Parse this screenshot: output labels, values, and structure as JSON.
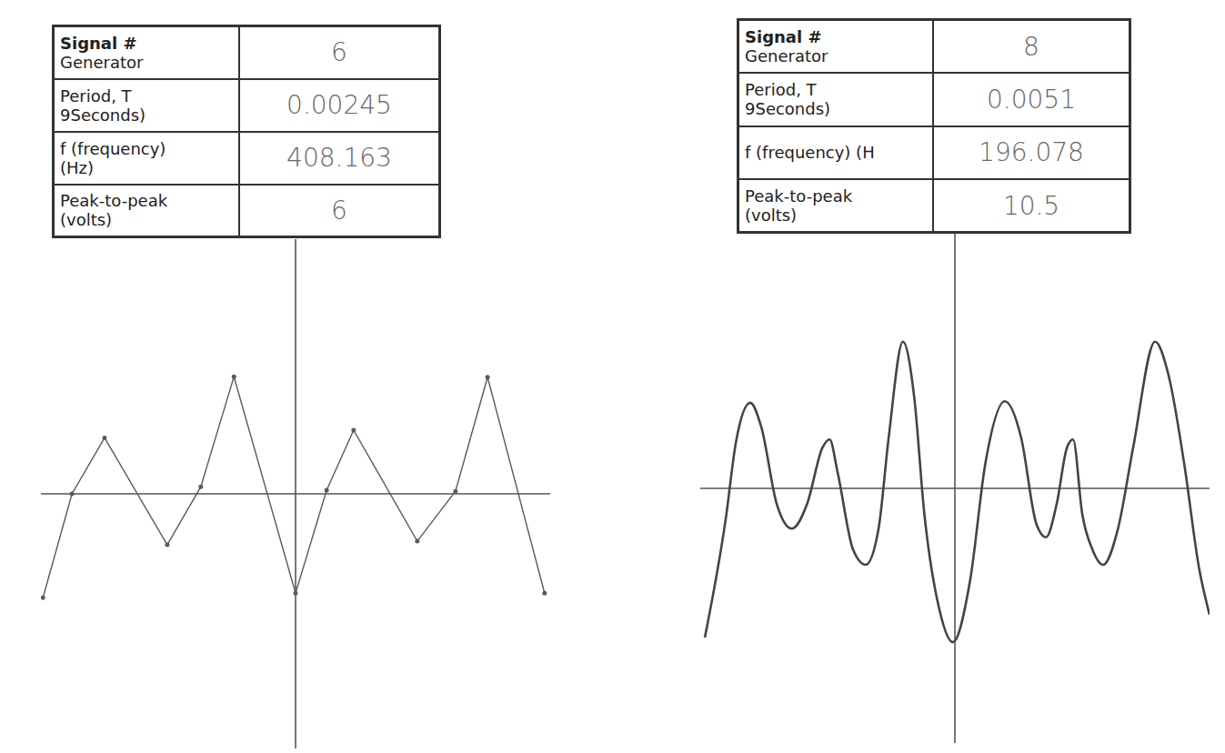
{
  "tables": [
    {
      "rows": [
        {
          "label": [
            "Signal #",
            "Generator"
          ],
          "value": "6"
        },
        {
          "label": [
            "Period, T",
            "9Seconds)"
          ],
          "value": "0.00245"
        },
        {
          "label": [
            "f (frequency)",
            "(Hz)"
          ],
          "value": "408.163"
        },
        {
          "label": [
            "Peak-to-peak",
            "(volts)"
          ],
          "value": "6"
        }
      ]
    },
    {
      "rows": [
        {
          "label": [
            "Signal #",
            "Generator"
          ],
          "value": "8"
        },
        {
          "label": [
            "Period, T",
            "9Seconds)"
          ],
          "value": "0.0051"
        },
        {
          "label": [
            "f (frequency) (H"
          ],
          "value": "196.078"
        },
        {
          "label": [
            "Peak-to-peak",
            "(volts)"
          ],
          "value": "10.5"
        }
      ]
    }
  ],
  "chart_data": [
    {
      "type": "line",
      "xlim": [
        -5,
        5
      ],
      "ylim": [
        -5,
        5
      ],
      "xticks": [
        -5,
        -4.5,
        -4,
        -3.5,
        -3,
        -2.5,
        -2,
        -1.5,
        -1,
        -0.5,
        0,
        0.5,
        1,
        1.5,
        2,
        2.5,
        3,
        3.5,
        4,
        4.5,
        5
      ],
      "yticks": [
        -5,
        -4.5,
        -4,
        -3.5,
        -3,
        -2.5,
        -2,
        -1.5,
        -1,
        -0.5,
        0,
        0.5,
        1,
        1.5,
        2,
        2.5,
        3,
        3.5,
        4,
        4.5,
        5
      ],
      "grid": true,
      "tick_labels": false,
      "color": "#5a5a5a",
      "line_style": "solid",
      "marker": "dot",
      "x": [
        -4.96,
        -4.39,
        -3.75,
        -2.52,
        -1.86,
        -1.21,
        0,
        0.61,
        1.14,
        2.39,
        3.14,
        3.77,
        4.89
      ],
      "values": [
        -2.04,
        0,
        1.1,
        -1.0,
        0.14,
        2.3,
        -1.95,
        0.07,
        1.25,
        -0.93,
        0.05,
        2.29,
        -1.95
      ]
    },
    {
      "type": "line",
      "xlim": [
        -5,
        5
      ],
      "ylim": [
        -5,
        5
      ],
      "xticks": [
        -5,
        -4.5,
        -4,
        -3.5,
        -3,
        -2.5,
        -2,
        -1.5,
        -1,
        -0.5,
        0,
        0.5,
        1,
        1.5,
        2,
        2.5,
        3,
        3.5,
        4,
        4.5,
        5
      ],
      "yticks": [
        -5,
        -4.5,
        -4,
        -3.5,
        -3,
        -2.5,
        -2,
        -1.5,
        -1,
        -0.5,
        0,
        0.5,
        1,
        1.5,
        2,
        2.5,
        3,
        3.5,
        4,
        4.5,
        5
      ],
      "grid": true,
      "tick_labels": false,
      "color": "#444444",
      "line_style": "smooth",
      "marker": "none",
      "x": [
        -4.91,
        -4.5,
        -4.3,
        -4.02,
        -3.8,
        -3.5,
        -3.2,
        -2.9,
        -2.6,
        -2.46,
        -2.3,
        -2.0,
        -1.75,
        -1.5,
        -1.3,
        -1.02,
        -0.8,
        -0.6,
        -0.3,
        -0.04,
        0.3,
        0.6,
        0.98,
        1.3,
        1.6,
        1.79,
        2.0,
        2.2,
        2.32,
        2.5,
        2.7,
        2.91,
        3.2,
        3.5,
        3.93,
        4.2,
        4.5,
        4.8,
        5.0
      ],
      "values": [
        -2.93,
        -0.6,
        0.9,
        1.68,
        1.2,
        -0.3,
        -0.79,
        -0.3,
        0.8,
        0.96,
        0.3,
        -1.2,
        -1.5,
        -0.8,
        1.0,
        2.88,
        1.8,
        -0.5,
        -2.4,
        -3.02,
        -1.8,
        0.5,
        1.71,
        1.0,
        -0.7,
        -0.96,
        -0.3,
        0.8,
        0.96,
        -0.5,
        -1.2,
        -1.5,
        -0.8,
        0.8,
        2.88,
        2.2,
        0.5,
        -1.6,
        -2.48
      ]
    }
  ]
}
